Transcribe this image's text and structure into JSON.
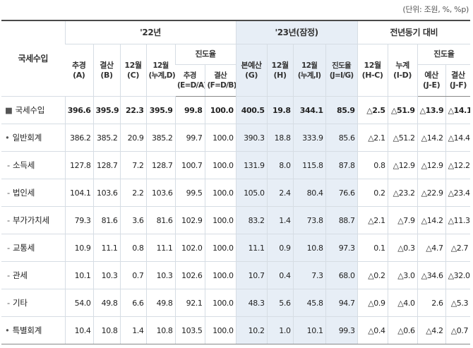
{
  "unit_note": "(단위: 조원, %, %p)",
  "table": {
    "row_header": "국세수입",
    "groups": {
      "y22": "'22년",
      "y23": "'23년(잠정)",
      "yoy": "전년동기 대비"
    },
    "progress_label": "진도율",
    "progress_label_yoy": "진도율",
    "columns": {
      "c1": [
        "추경",
        "(A)"
      ],
      "c2": [
        "결산",
        "(B)"
      ],
      "c3": [
        "12월",
        "(C)"
      ],
      "c4": [
        "12월",
        "(누계,D)"
      ],
      "c5": [
        "추경",
        "(E=D/A)"
      ],
      "c6": [
        "결산",
        "(F=D/B)"
      ],
      "c7": [
        "본예산",
        "(G)"
      ],
      "c8": [
        "12월",
        "(H)"
      ],
      "c9": [
        "12월",
        "(누계,I)"
      ],
      "c10": [
        "진도율",
        "(J=I/G)"
      ],
      "c11": [
        "12월",
        "(H-C)"
      ],
      "c12": [
        "누계",
        "(I-D)"
      ],
      "c13": [
        "예산",
        "(J-E)"
      ],
      "c14": [
        "결산",
        "(J-F)"
      ]
    },
    "rows": [
      {
        "bullet": "■",
        "label": "국세수입",
        "values": [
          "396.6",
          "395.9",
          "22.3",
          "395.9",
          "99.8",
          "100.0",
          "400.5",
          "19.8",
          "344.1",
          "85.9",
          "△2.5",
          "△51.9",
          "△13.9",
          "△14.1"
        ]
      },
      {
        "bullet": "•",
        "label": "일반회계",
        "values": [
          "386.2",
          "385.2",
          "20.9",
          "385.2",
          "99.7",
          "100.0",
          "390.3",
          "18.8",
          "333.9",
          "85.6",
          "△2.1",
          "△51.2",
          "△14.2",
          "△14.4"
        ]
      },
      {
        "bullet": "-",
        "label": "소득세",
        "values": [
          "127.8",
          "128.7",
          "7.2",
          "128.7",
          "100.7",
          "100.0",
          "131.9",
          "8.0",
          "115.8",
          "87.8",
          "0.8",
          "△12.9",
          "△12.9",
          "△12.2"
        ]
      },
      {
        "bullet": "-",
        "label": "법인세",
        "values": [
          "104.1",
          "103.6",
          "2.2",
          "103.6",
          "99.5",
          "100.0",
          "105.0",
          "2.4",
          "80.4",
          "76.6",
          "0.2",
          "△23.2",
          "△22.9",
          "△23.4"
        ]
      },
      {
        "bullet": "-",
        "label": "부가가치세",
        "values": [
          "79.3",
          "81.6",
          "3.6",
          "81.6",
          "102.9",
          "100.0",
          "83.2",
          "1.4",
          "73.8",
          "88.7",
          "△2.1",
          "△7.9",
          "△14.2",
          "△11.3"
        ]
      },
      {
        "bullet": "-",
        "label": "교통세",
        "values": [
          "10.9",
          "11.1",
          "0.8",
          "11.1",
          "102.0",
          "100.0",
          "11.1",
          "0.9",
          "10.8",
          "97.3",
          "0.1",
          "△0.3",
          "△4.7",
          "△2.7"
        ]
      },
      {
        "bullet": "-",
        "label": "관세",
        "values": [
          "10.1",
          "10.3",
          "0.7",
          "10.3",
          "102.6",
          "100.0",
          "10.7",
          "0.4",
          "7.3",
          "68.0",
          "△0.2",
          "△3.0",
          "△34.6",
          "△32.0"
        ]
      },
      {
        "bullet": "-",
        "label": "기타",
        "values": [
          "54.0",
          "49.8",
          "6.6",
          "49.8",
          "92.1",
          "100.0",
          "48.3",
          "5.6",
          "45.8",
          "94.7",
          "△0.9",
          "△4.0",
          "2.6",
          "△5.3"
        ]
      },
      {
        "bullet": "•",
        "label": "특별회계",
        "values": [
          "10.4",
          "10.8",
          "1.4",
          "10.8",
          "103.5",
          "100.0",
          "10.2",
          "1.0",
          "10.1",
          "99.3",
          "△0.4",
          "△0.6",
          "△4.2",
          "△0.7"
        ]
      }
    ]
  }
}
